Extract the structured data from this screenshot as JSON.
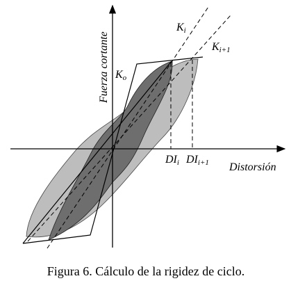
{
  "axes": {
    "y_label": "Fuerza cortante",
    "x_label": "Distorsión"
  },
  "labels": {
    "k_i": {
      "main": "K",
      "sub": "i"
    },
    "k_i1": {
      "main": "K",
      "sub": "i+1"
    },
    "k_o": {
      "main": "K",
      "sub": "o"
    },
    "di_i": {
      "main": "DI",
      "sub": "i"
    },
    "di_i1": {
      "main": "DI",
      "sub": "i+1"
    }
  },
  "caption": "Figura 6. Cálculo de la rigidez de ciclo."
}
